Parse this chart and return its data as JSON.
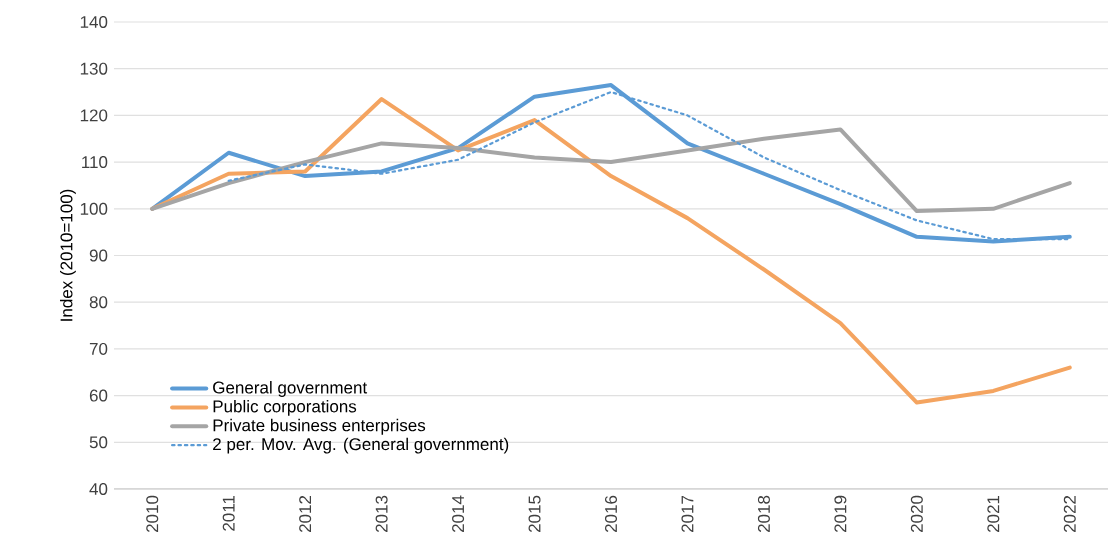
{
  "chart_data": {
    "type": "line",
    "ylabel": "Index (2010=100)",
    "categories": [
      "2010",
      "2011",
      "2012",
      "2013",
      "2014",
      "2015",
      "2016",
      "2017",
      "2018",
      "2019",
      "2020",
      "2021",
      "2022"
    ],
    "series": [
      {
        "name": "General government",
        "color": "#5b9bd5",
        "values": [
          100,
          112,
          107,
          108,
          113,
          124,
          126.5,
          114,
          107.5,
          101,
          94,
          93,
          94
        ]
      },
      {
        "name": "Public corporations",
        "color": "#f4a460",
        "values": [
          100,
          107.5,
          108,
          123.5,
          112.5,
          119,
          107,
          98,
          87,
          75.5,
          58.5,
          61,
          66
        ]
      },
      {
        "name": "Private business enterprises",
        "color": "#a5a5a5",
        "values": [
          100,
          105.5,
          110,
          114,
          113,
          111,
          110,
          112.5,
          115,
          117,
          99.5,
          100,
          105.5
        ]
      },
      {
        "name": "2 per. Mov. Avg. (General government)",
        "color": "#5b9bd5",
        "line_style": "dotted",
        "values": [
          null,
          106,
          109.5,
          107.5,
          110.5,
          118.5,
          125,
          120,
          111,
          104,
          97.5,
          93.5,
          93.5
        ]
      }
    ],
    "ylim": [
      40,
      140
    ],
    "yticks": [
      40,
      50,
      60,
      70,
      80,
      90,
      100,
      110,
      120,
      130,
      140
    ],
    "grid": "y",
    "legend": "bottom left",
    "marker": "none"
  }
}
